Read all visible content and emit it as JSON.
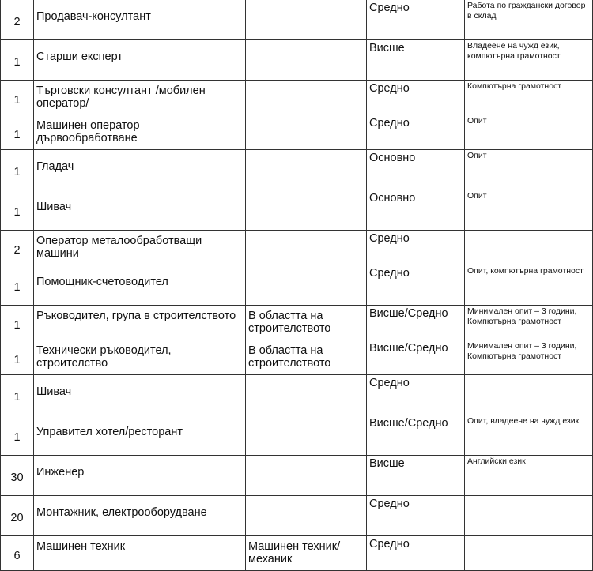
{
  "rows": [
    {
      "count": "2",
      "position": "Продавач-консултант",
      "specialty": "",
      "education": "Средно",
      "requirements": "Работа по граждански договор в склад"
    },
    {
      "count": "1",
      "position": "Старши експерт",
      "specialty": "",
      "education": "Висше",
      "requirements": "Владеене на чужд език, компютърна грамотност"
    },
    {
      "count": "1",
      "position": "Търговски консултант /мобилен оператор/",
      "specialty": "",
      "education": "Средно",
      "requirements": "Компютърна грамотност"
    },
    {
      "count": "1",
      "position": "Машинен оператор дървообработване",
      "specialty": "",
      "education": "Средно",
      "requirements": "Опит"
    },
    {
      "count": "1",
      "position": "Гладач",
      "specialty": "",
      "education": "Основно",
      "requirements": "Опит"
    },
    {
      "count": "1",
      "position": "Шивач",
      "specialty": "",
      "education": "Основно",
      "requirements": "Опит"
    },
    {
      "count": "2",
      "position": "Оператор металообработващи машини",
      "specialty": "",
      "education": "Средно",
      "requirements": ""
    },
    {
      "count": "1",
      "position": "Помощник-счетоводител",
      "specialty": "",
      "education": "Средно",
      "requirements": "Опит, компютърна грамотност"
    },
    {
      "count": "1",
      "position": "Ръководител, група в строителството",
      "specialty": "В областта на строителството",
      "education": "Висше/Средно",
      "requirements": "Минимален опит – 3 години, Компютърна грамотност"
    },
    {
      "count": "1",
      "position": "Технически ръководител, строителство",
      "specialty": "В областта на строителството",
      "education": "Висше/Средно",
      "requirements": "Минимален опит – 3 години, Компютърна грамотност"
    },
    {
      "count": "1",
      "position": "Шивач",
      "specialty": "",
      "education": "Средно",
      "requirements": ""
    },
    {
      "count": "1",
      "position": "Управител хотел/ресторант",
      "specialty": "",
      "education": "Висше/Средно",
      "requirements": "Опит, владеене на чужд език"
    },
    {
      "count": "30",
      "position": "Инженер",
      "specialty": "",
      "education": "Висше",
      "requirements": "Английски език"
    },
    {
      "count": "20",
      "position": "Монтажник, електрооборудване",
      "specialty": "",
      "education": "Средно",
      "requirements": ""
    },
    {
      "count": "6",
      "position": "Машинен техник",
      "specialty": "Машинен техник/механик",
      "education": "Средно",
      "requirements": ""
    }
  ]
}
